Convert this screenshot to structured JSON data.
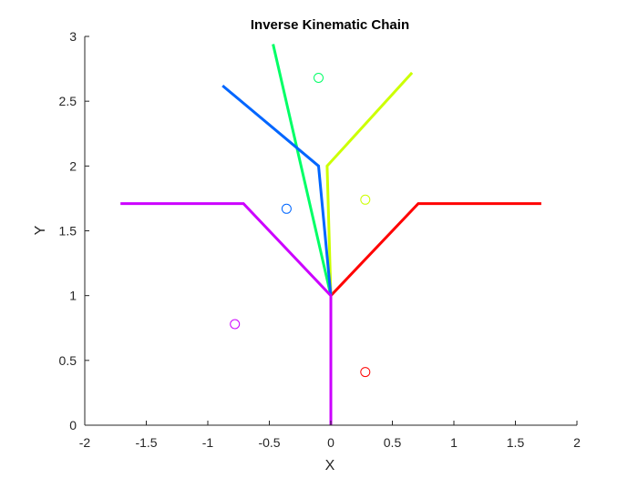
{
  "chart_data": {
    "type": "line",
    "title": "Inverse Kinematic Chain",
    "xlabel": "X",
    "ylabel": "Y",
    "xlim": [
      -2,
      2
    ],
    "ylim": [
      0,
      3
    ],
    "grid": false,
    "x_ticks": [
      -2,
      -1.5,
      -1,
      -0.5,
      0,
      0.5,
      1,
      1.5,
      2
    ],
    "y_ticks": [
      0,
      0.5,
      1,
      1.5,
      2,
      2.5,
      3
    ],
    "x_tick_labels": [
      "-2",
      "-1.5",
      "-1",
      "-0.5",
      "0",
      "0.5",
      "1",
      "1.5",
      "2"
    ],
    "y_tick_labels": [
      "0",
      "0.5",
      "1",
      "1.5",
      "2",
      "2.5",
      "3"
    ],
    "series": [
      {
        "color": "#ff0000",
        "points": [
          [
            0,
            1
          ],
          [
            0.71,
            1.71
          ],
          [
            1.71,
            1.71
          ]
        ]
      },
      {
        "color": "#ccff00",
        "points": [
          [
            0,
            1
          ],
          [
            -0.03,
            2.0
          ],
          [
            0.66,
            2.72
          ]
        ]
      },
      {
        "color": "#00ff66",
        "points": [
          [
            0,
            1
          ],
          [
            -0.47,
            2.94
          ]
        ]
      },
      {
        "color": "#0066ff",
        "points": [
          [
            0,
            1
          ],
          [
            -0.1,
            2.0
          ],
          [
            -0.88,
            2.62
          ]
        ]
      },
      {
        "color": "#cc00ff",
        "points": [
          [
            0,
            0
          ],
          [
            0,
            1
          ],
          [
            -0.71,
            1.71
          ],
          [
            -1.71,
            1.71
          ]
        ]
      }
    ],
    "targets": [
      {
        "color": "#ff0000",
        "x": 0.28,
        "y": 0.41
      },
      {
        "color": "#ccff00",
        "x": 0.28,
        "y": 1.74
      },
      {
        "color": "#00ff66",
        "x": -0.1,
        "y": 2.68
      },
      {
        "color": "#0066ff",
        "x": -0.36,
        "y": 1.67
      },
      {
        "color": "#cc00ff",
        "x": -0.78,
        "y": 0.78
      }
    ]
  }
}
